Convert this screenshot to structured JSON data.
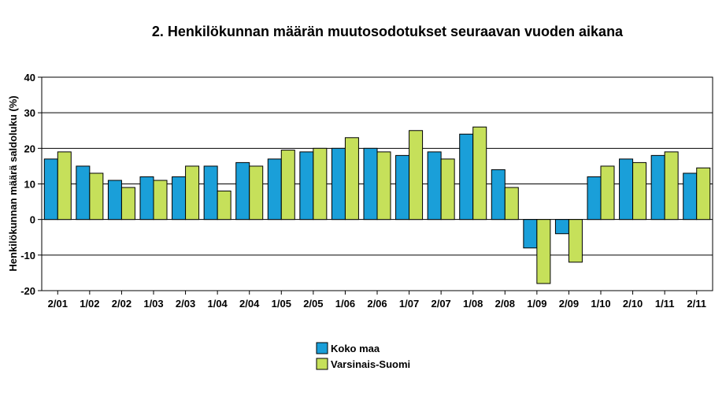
{
  "chart_data": {
    "type": "bar",
    "title": "2. Henkilökunnan määrän muutosodotukset seuraavan vuoden aikana",
    "ylabel": "Henkilökunnan määrä saldoluku (%)",
    "xlabel": "",
    "ylim": [
      -20,
      40
    ],
    "yticks": [
      -20,
      -10,
      0,
      10,
      20,
      30,
      40
    ],
    "grid": true,
    "legend": "bottom-center",
    "categories": [
      "2/01",
      "1/02",
      "2/02",
      "1/03",
      "2/03",
      "1/04",
      "2/04",
      "1/05",
      "2/05",
      "1/06",
      "2/06",
      "1/07",
      "2/07",
      "1/08",
      "2/08",
      "1/09",
      "2/09",
      "1/10",
      "2/10",
      "1/11",
      "2/11"
    ],
    "series": [
      {
        "name": "Koko maa",
        "color": "#1a9fd9",
        "values": [
          17,
          15,
          11,
          12,
          12,
          15,
          16,
          17,
          19,
          20,
          20,
          18,
          19,
          24,
          14,
          -8,
          -4,
          12,
          17,
          18,
          13
        ]
      },
      {
        "name": "Varsinais-Suomi",
        "color": "#c6e05a",
        "values": [
          19,
          13,
          9,
          11,
          15,
          8,
          15,
          19.5,
          20,
          23,
          19,
          25,
          17,
          26,
          9,
          -18,
          -12,
          15,
          16,
          19,
          14.5
        ]
      }
    ]
  }
}
